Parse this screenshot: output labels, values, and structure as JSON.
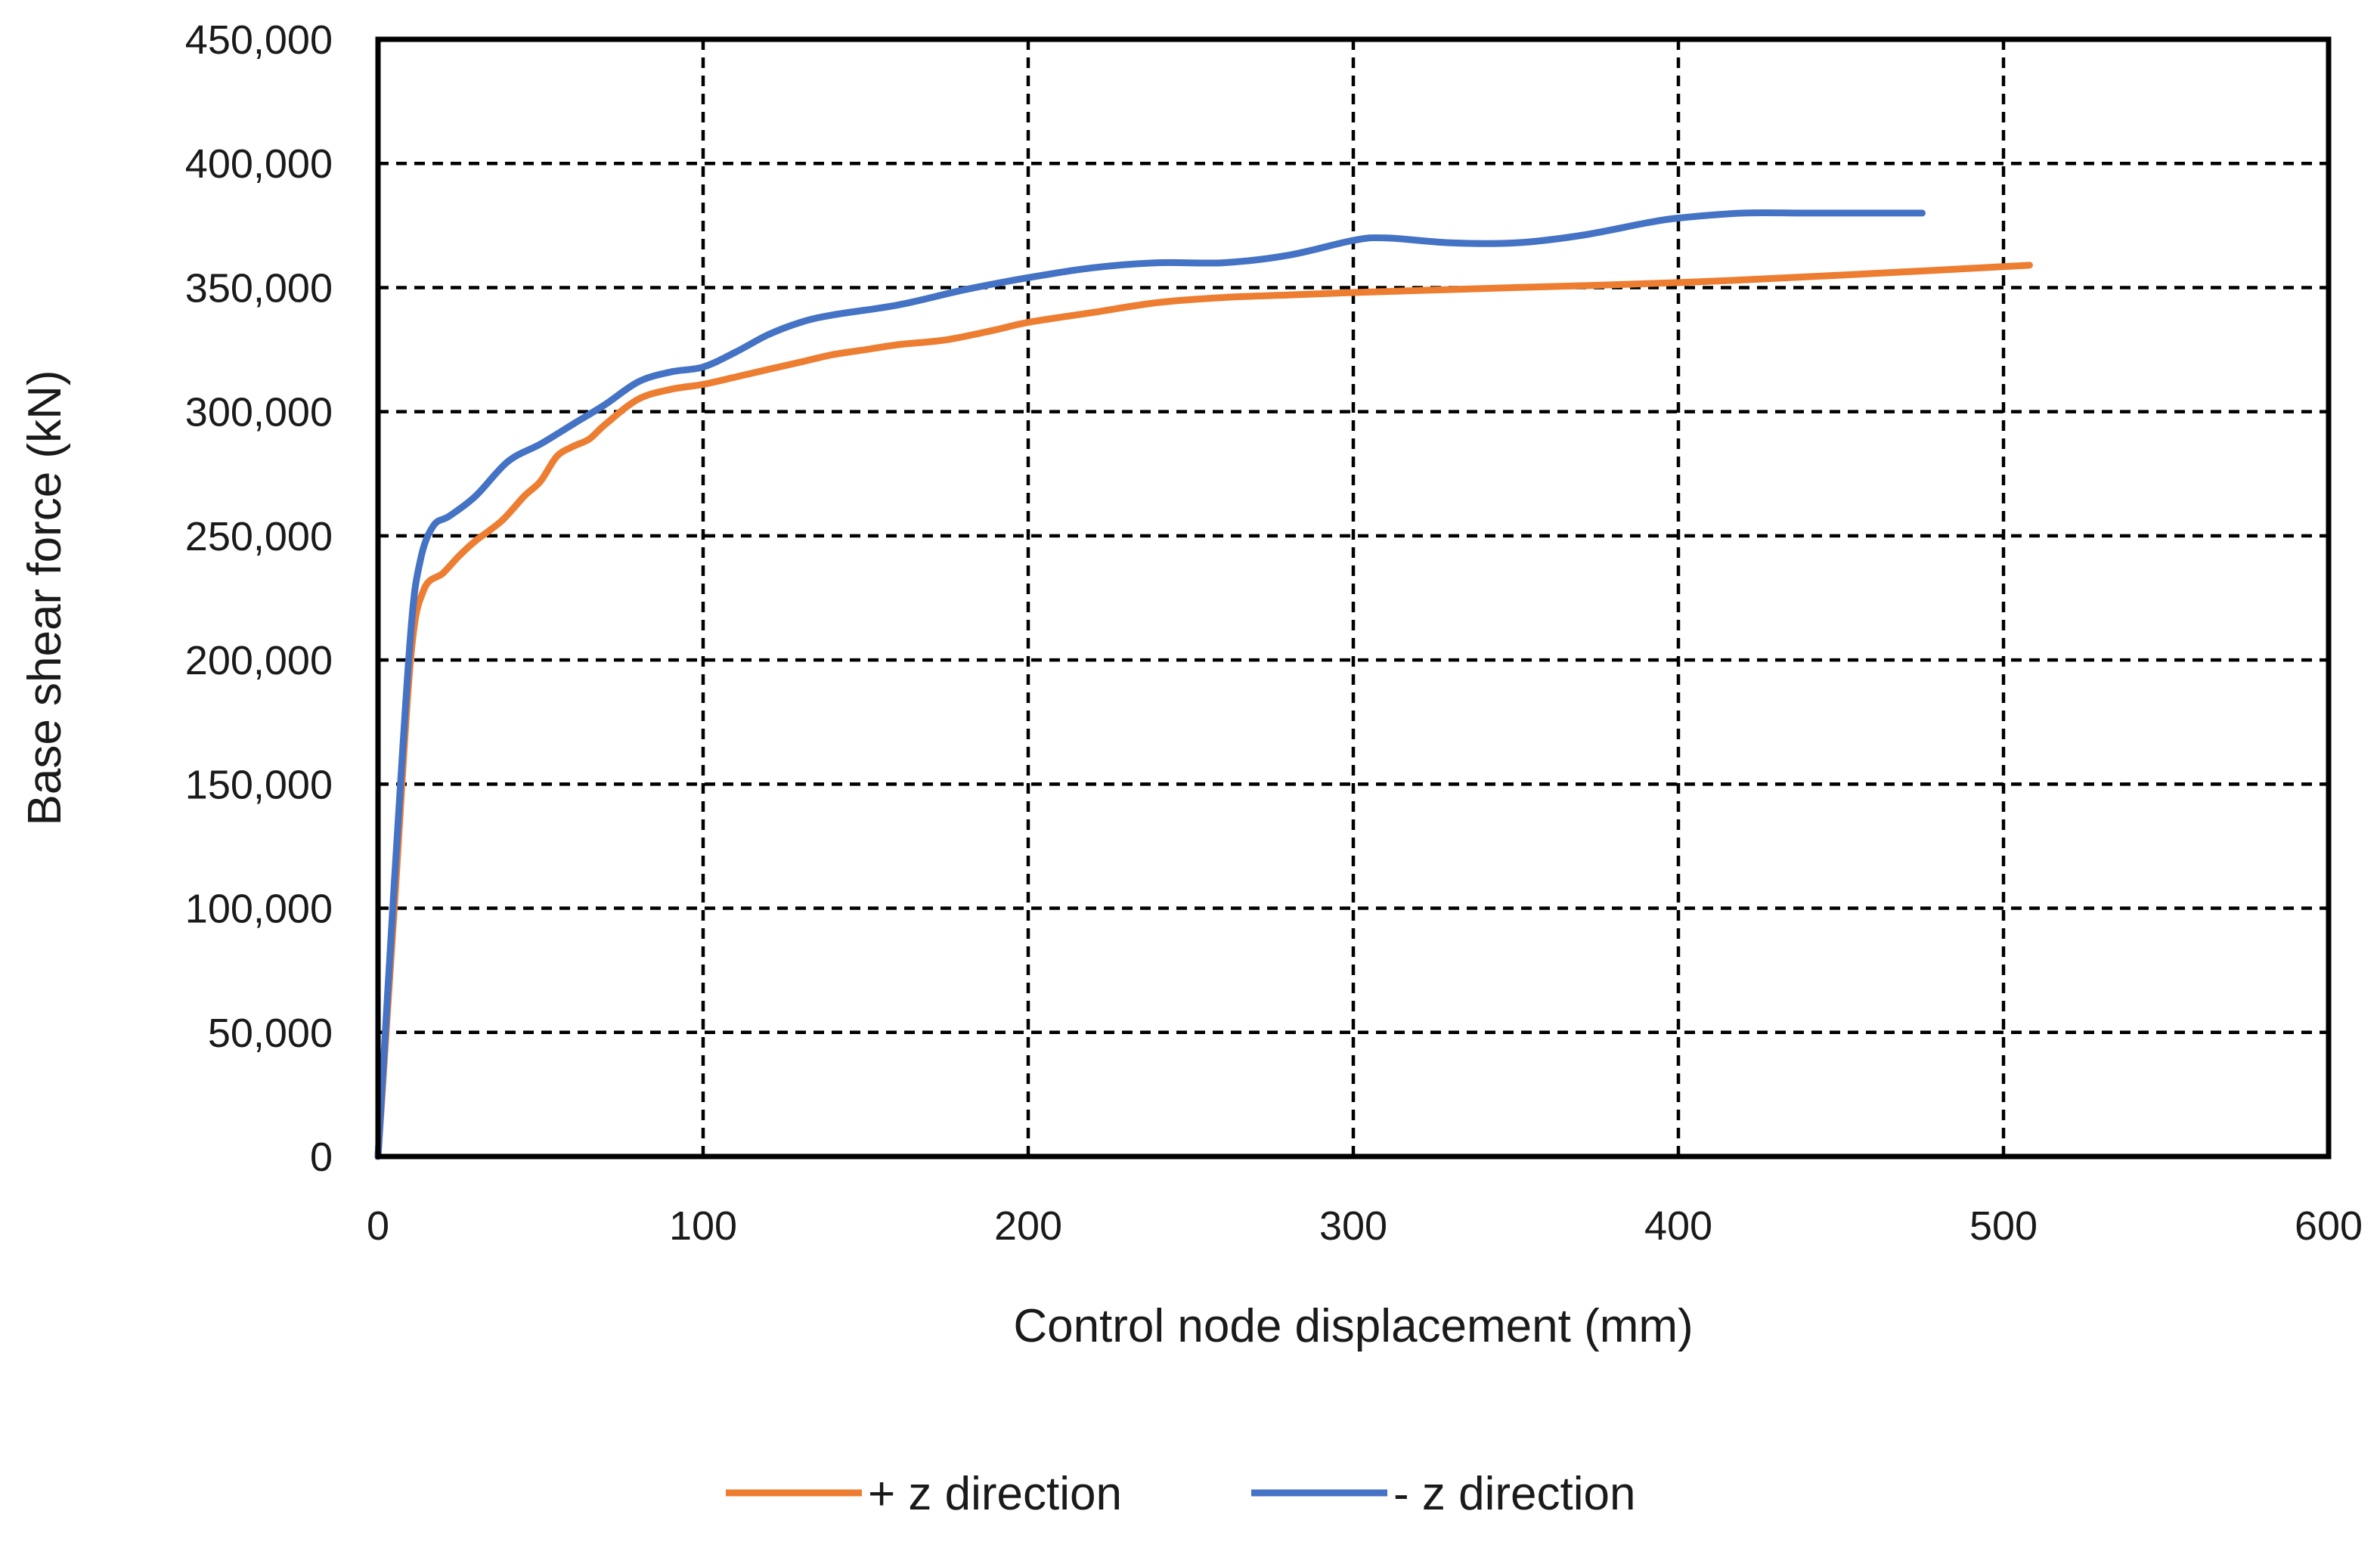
{
  "chart_data": {
    "type": "line",
    "title": "",
    "xlabel": "Control node displacement (mm)",
    "ylabel": "Base shear force (kN)",
    "xlim": [
      0,
      600
    ],
    "ylim": [
      0,
      450000
    ],
    "x_ticks": [
      0,
      100,
      200,
      300,
      400,
      500,
      600
    ],
    "y_ticks": [
      0,
      50000,
      100000,
      150000,
      200000,
      250000,
      300000,
      350000,
      400000,
      450000
    ],
    "x_tick_labels": [
      "0",
      "100",
      "200",
      "300",
      "400",
      "500",
      "600"
    ],
    "y_tick_labels": [
      "0",
      "50,000",
      "100,000",
      "150,000",
      "200,000",
      "250,000",
      "300,000",
      "350,000",
      "400,000",
      "450,000"
    ],
    "grid": true,
    "legend_position": "bottom",
    "series": [
      {
        "name": "+ z direction",
        "color": "#ED7D31",
        "points": [
          [
            0,
            0
          ],
          [
            5,
            100000
          ],
          [
            10,
            200000
          ],
          [
            14,
            228000
          ],
          [
            20,
            235000
          ],
          [
            25,
            242000
          ],
          [
            30,
            248000
          ],
          [
            38,
            256000
          ],
          [
            45,
            266000
          ],
          [
            50,
            272000
          ],
          [
            55,
            282000
          ],
          [
            60,
            286000
          ],
          [
            65,
            289000
          ],
          [
            70,
            295000
          ],
          [
            80,
            305000
          ],
          [
            90,
            309000
          ],
          [
            100,
            311000
          ],
          [
            110,
            314000
          ],
          [
            120,
            317000
          ],
          [
            130,
            320000
          ],
          [
            140,
            323000
          ],
          [
            150,
            325000
          ],
          [
            160,
            327000
          ],
          [
            175,
            329000
          ],
          [
            190,
            333000
          ],
          [
            200,
            336000
          ],
          [
            220,
            340000
          ],
          [
            240,
            344000
          ],
          [
            260,
            346000
          ],
          [
            280,
            347000
          ],
          [
            300,
            348000
          ],
          [
            350,
            350000
          ],
          [
            400,
            352000
          ],
          [
            450,
            355000
          ],
          [
            508,
            359000
          ]
        ]
      },
      {
        "name": "- z direction",
        "color": "#4472C4",
        "points": [
          [
            0,
            0
          ],
          [
            5,
            110000
          ],
          [
            10,
            210000
          ],
          [
            13,
            240000
          ],
          [
            17,
            254000
          ],
          [
            22,
            258000
          ],
          [
            30,
            266000
          ],
          [
            40,
            280000
          ],
          [
            50,
            287000
          ],
          [
            60,
            295000
          ],
          [
            70,
            303000
          ],
          [
            80,
            312000
          ],
          [
            90,
            316000
          ],
          [
            100,
            318000
          ],
          [
            110,
            324000
          ],
          [
            120,
            331000
          ],
          [
            130,
            336000
          ],
          [
            140,
            339000
          ],
          [
            160,
            343000
          ],
          [
            180,
            349000
          ],
          [
            200,
            354000
          ],
          [
            220,
            358000
          ],
          [
            240,
            360000
          ],
          [
            260,
            360000
          ],
          [
            280,
            363000
          ],
          [
            300,
            369000
          ],
          [
            310,
            370000
          ],
          [
            330,
            368000
          ],
          [
            350,
            368000
          ],
          [
            370,
            371000
          ],
          [
            390,
            376000
          ],
          [
            400,
            378000
          ],
          [
            420,
            380000
          ],
          [
            440,
            380000
          ],
          [
            475,
            380000
          ]
        ]
      }
    ]
  }
}
